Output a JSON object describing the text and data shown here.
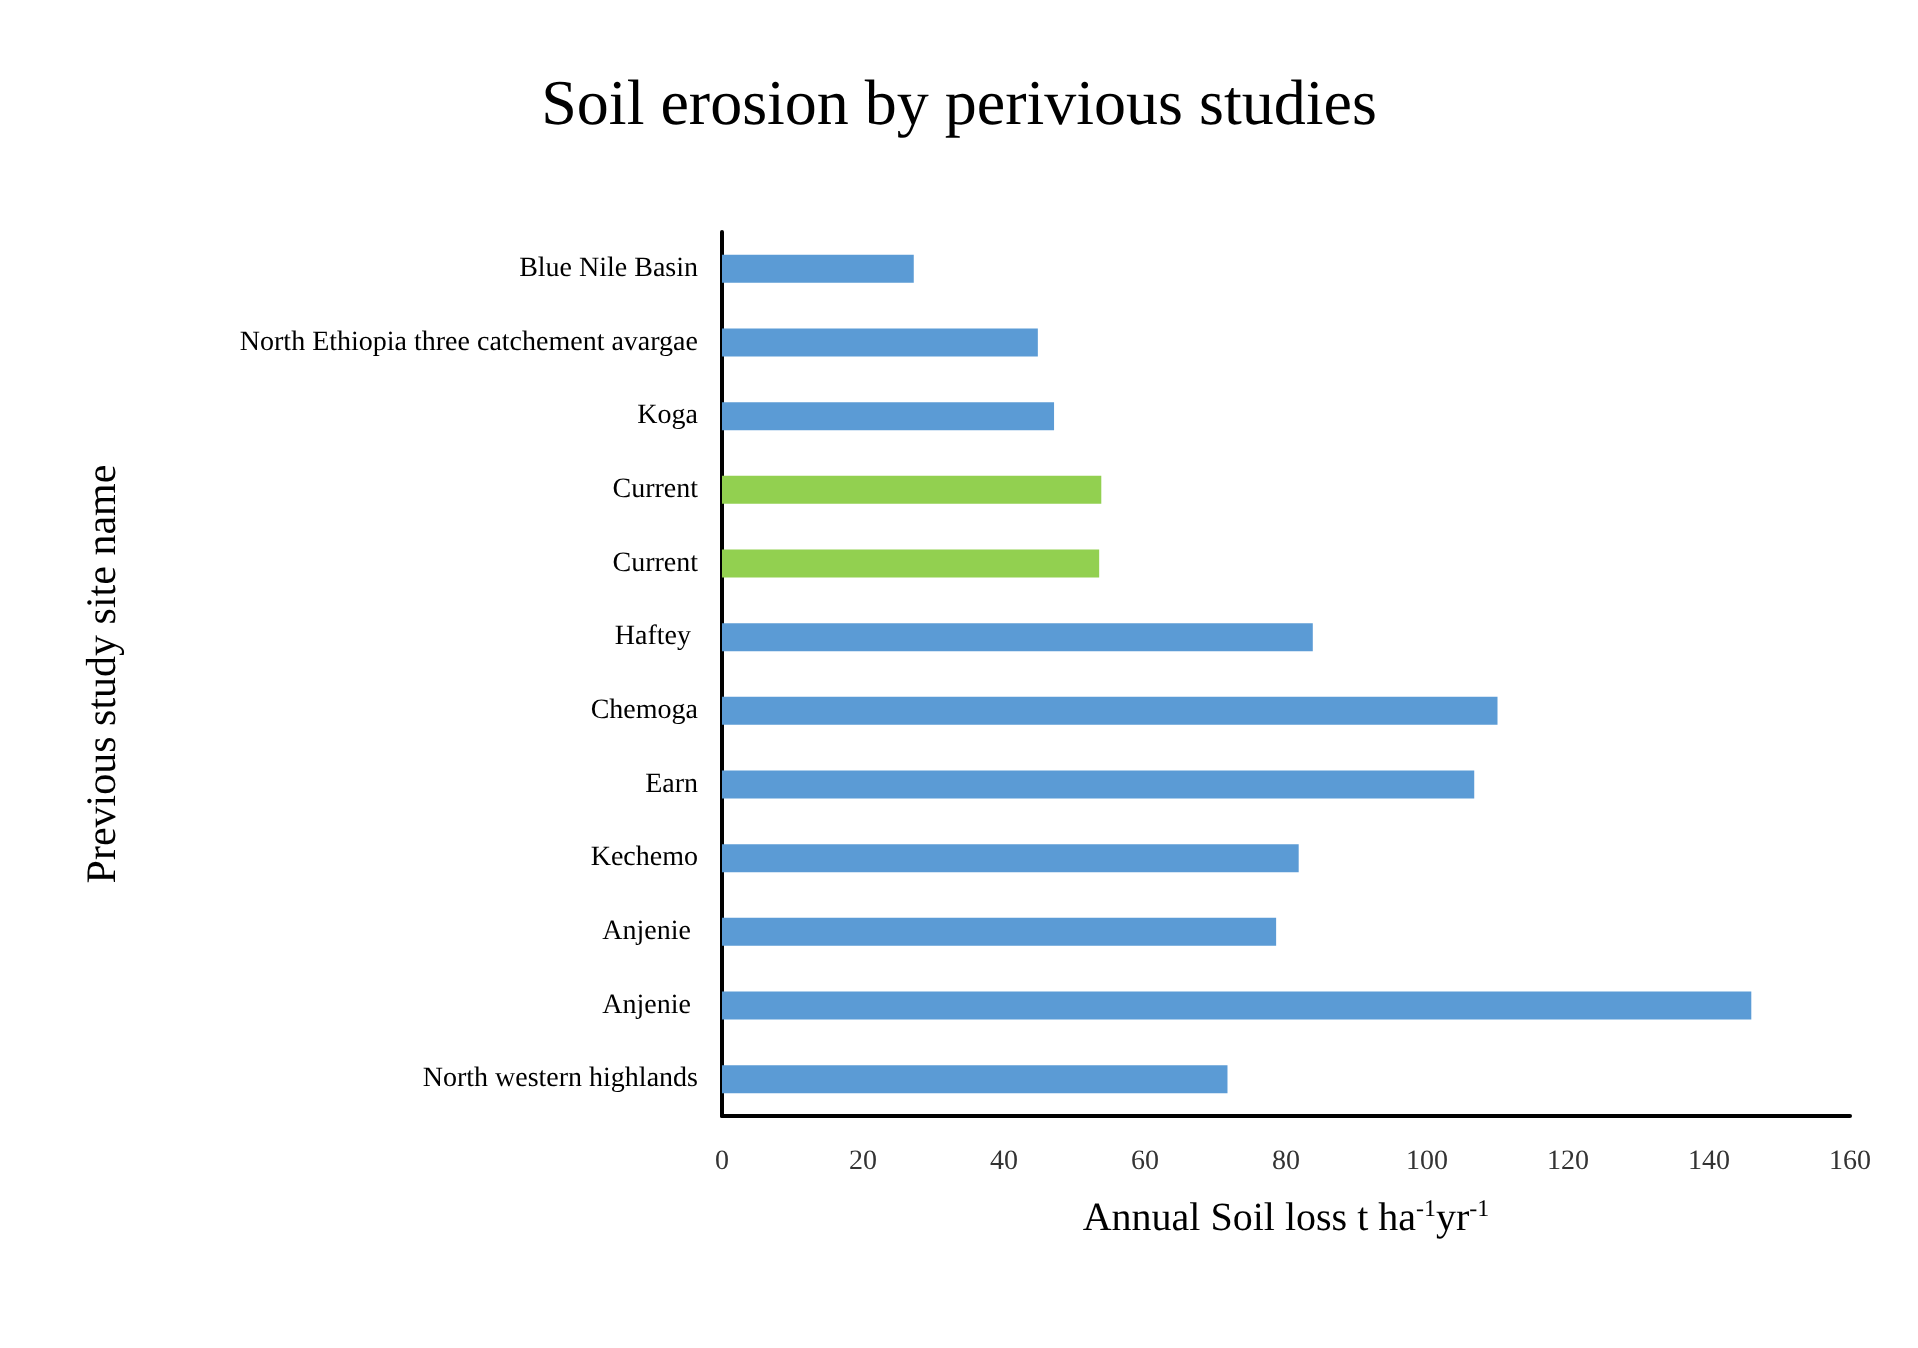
{
  "chart_data": {
    "type": "bar",
    "orientation": "horizontal",
    "title": "Soil erosion by perivious studies",
    "xlabel": "Annual Soil loss t ha$^{-1}$yr$^{-1}$",
    "ylabel": "Previous study site name",
    "categories": [
      "Blue Nile Basin",
      "North Ethiopia three catchement avargae",
      "Koga",
      "Current",
      "Current",
      "Haftey ",
      "Chemoga",
      "Earn",
      "Kechemo",
      "Anjenie ",
      "Anjenie ",
      "North western highlands"
    ],
    "values": [
      27.2,
      44.8,
      47.1,
      53.8,
      53.5,
      83.8,
      110,
      106.7,
      81.8,
      78.6,
      146,
      71.7
    ],
    "colors": [
      "#5b9bd5",
      "#5b9bd5",
      "#5b9bd5",
      "#92d050",
      "#92d050",
      "#5b9bd5",
      "#5b9bd5",
      "#5b9bd5",
      "#5b9bd5",
      "#5b9bd5",
      "#5b9bd5",
      "#5b9bd5"
    ],
    "xlim": [
      0,
      160
    ],
    "xticks": [
      0,
      20,
      40,
      60,
      80,
      100,
      120,
      140,
      160
    ],
    "grid": false
  }
}
